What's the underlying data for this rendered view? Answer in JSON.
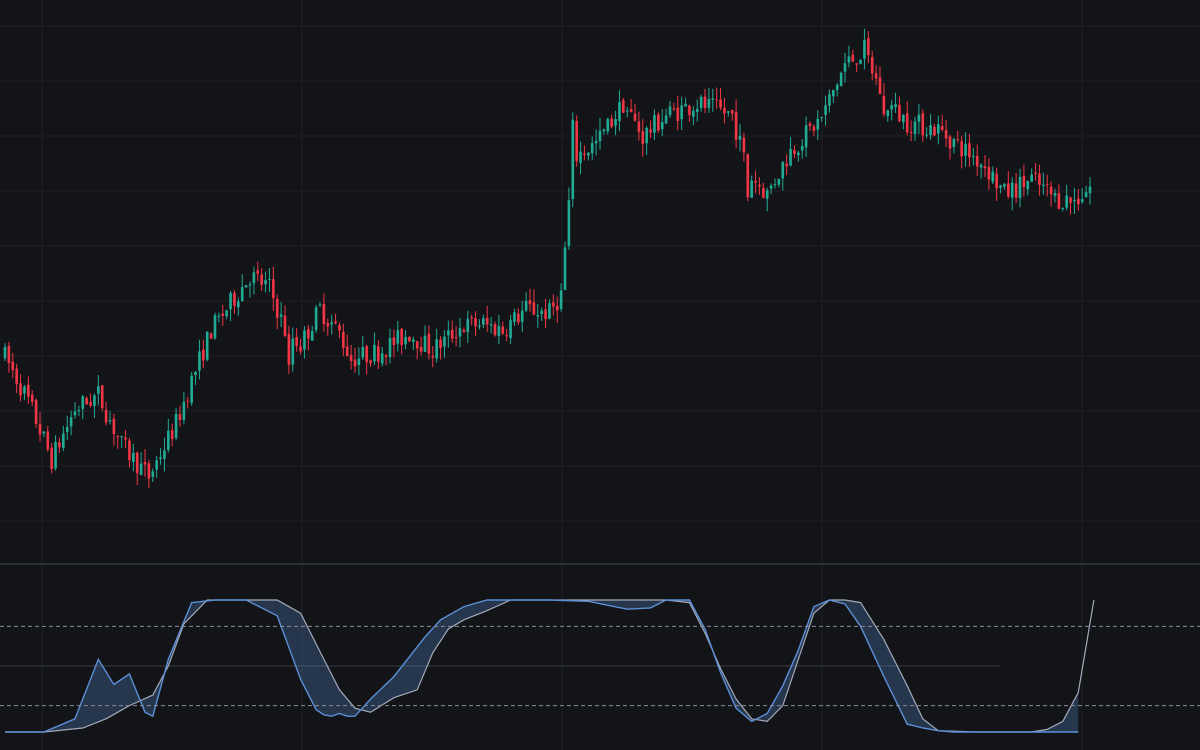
{
  "colors": {
    "background": "#131418",
    "grid": "#1e2026",
    "pane_separator": "#2e3037",
    "up_candle": "#22ab94",
    "down_candle": "#f23645",
    "oscillator_line": "#5b8fd6",
    "oscillator_signal": "#a3a9b8",
    "oscillator_fill": "#5b8fd6",
    "level_line": "#8a8d96",
    "midline": "#3a3d45"
  },
  "chart_data": [
    {
      "type": "candlestick",
      "title": "",
      "xlabel": "",
      "ylabel": "",
      "x_range": [
        0,
        279
      ],
      "ylim": [
        76,
        115
      ],
      "grid": true,
      "anchors": [
        [
          0,
          90.2
        ],
        [
          6,
          87.1
        ],
        [
          12,
          83.0
        ],
        [
          18,
          86.5
        ],
        [
          24,
          87.5
        ],
        [
          30,
          84.0
        ],
        [
          37,
          81.8
        ],
        [
          44,
          85.5
        ],
        [
          48,
          88.5
        ],
        [
          53,
          92.0
        ],
        [
          57,
          93.5
        ],
        [
          63,
          95.8
        ],
        [
          68,
          95.0
        ],
        [
          72,
          92.0
        ],
        [
          76,
          91.0
        ],
        [
          81,
          93.5
        ],
        [
          86,
          91.8
        ],
        [
          89,
          90.0
        ],
        [
          96,
          90.5
        ],
        [
          104,
          91.8
        ],
        [
          110,
          90.6
        ],
        [
          117,
          92.2
        ],
        [
          122,
          92.5
        ],
        [
          128,
          92.0
        ],
        [
          134,
          93.5
        ],
        [
          140,
          93.2
        ],
        [
          143,
          94.5
        ],
        [
          146,
          104.0
        ],
        [
          152,
          105.0
        ],
        [
          159,
          107.8
        ],
        [
          164,
          105.5
        ],
        [
          170,
          107.0
        ],
        [
          178,
          107.8
        ],
        [
          187,
          107.0
        ],
        [
          191,
          103.0
        ],
        [
          196,
          101.5
        ],
        [
          202,
          104.5
        ],
        [
          210,
          106.8
        ],
        [
          216,
          110.5
        ],
        [
          221,
          111.5
        ],
        [
          226,
          108.0
        ],
        [
          232,
          106.5
        ],
        [
          240,
          106.0
        ],
        [
          247,
          104.5
        ],
        [
          252,
          103.5
        ],
        [
          257,
          101.5
        ],
        [
          264,
          102.5
        ],
        [
          270,
          101.2
        ],
        [
          275,
          101.0
        ],
        [
          279,
          102.0
        ]
      ],
      "shocks": [
        [
          73,
          -2.6
        ],
        [
          146,
          2.0
        ],
        [
          191,
          -1.6
        ],
        [
          226,
          -1.2
        ]
      ]
    },
    {
      "type": "line",
      "title": "",
      "ylim": [
        0,
        100
      ],
      "levels": [
        80,
        20
      ],
      "midline": 50,
      "series": [
        {
          "role": "main",
          "x": [
            0,
            10,
            18,
            24,
            28,
            32,
            36,
            38,
            42,
            48,
            54,
            62,
            70,
            76,
            80,
            82,
            84,
            86,
            88,
            90,
            94,
            100,
            108,
            112,
            118,
            124,
            128,
            132,
            136,
            140,
            150,
            160,
            166,
            170,
            176,
            180,
            184,
            188,
            192,
            196,
            200,
            204,
            208,
            212,
            216,
            220,
            226,
            232,
            236,
            240,
            244,
            252,
            262,
            270,
            276
          ],
          "values": [
            0,
            0,
            10,
            55,
            36,
            44,
            15,
            12,
            55,
            98,
            100,
            100,
            88,
            40,
            17,
            13,
            12,
            14,
            12,
            12,
            25,
            42,
            72,
            85,
            95,
            100,
            100,
            100,
            100,
            100,
            99,
            93,
            94,
            100,
            100,
            78,
            45,
            18,
            8,
            14,
            35,
            62,
            95,
            100,
            97,
            80,
            42,
            6,
            3,
            1,
            0,
            0,
            0,
            0,
            0
          ]
        },
        {
          "role": "signal",
          "x": [
            0,
            10,
            20,
            26,
            32,
            38,
            42,
            46,
            52,
            60,
            70,
            76,
            82,
            86,
            90,
            94,
            100,
            106,
            110,
            114,
            118,
            124,
            130,
            140,
            160,
            170,
            176,
            180,
            184,
            188,
            192,
            196,
            200,
            204,
            208,
            212,
            216,
            220,
            226,
            232,
            236,
            240,
            250,
            258,
            264,
            268,
            272,
            276,
            280
          ],
          "values": [
            0,
            0,
            3,
            10,
            20,
            28,
            50,
            82,
            100,
            100,
            100,
            90,
            55,
            32,
            18,
            15,
            26,
            32,
            60,
            78,
            85,
            92,
            100,
            100,
            100,
            100,
            98,
            75,
            48,
            25,
            10,
            8,
            20,
            55,
            90,
            100,
            100,
            98,
            70,
            35,
            10,
            1,
            0,
            0,
            0,
            2,
            8,
            30,
            100
          ]
        }
      ]
    }
  ]
}
